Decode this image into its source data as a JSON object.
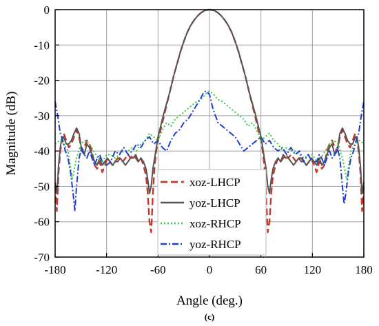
{
  "caption": "(c)",
  "chart_data": {
    "type": "line",
    "xlabel": "Angle (deg.)",
    "ylabel": "Magnitude (dB)",
    "xlim": [
      -180,
      180
    ],
    "ylim": [
      -70,
      0
    ],
    "xticks": [
      -180,
      -120,
      -60,
      0,
      60,
      120,
      180
    ],
    "yticks": [
      0,
      -10,
      -20,
      -30,
      -40,
      -50,
      -60,
      -70
    ],
    "grid": true,
    "legend_position": "center",
    "series": [
      {
        "name": "xoz-LHCP",
        "color": "#c0392b",
        "dash": "dashed",
        "x": [
          -180,
          -178,
          -176,
          -174,
          -172,
          -170,
          -167,
          -164,
          -161,
          -158,
          -155,
          -152,
          -149,
          -146,
          -143,
          -140,
          -137,
          -134,
          -131,
          -128,
          -125,
          -122,
          -119,
          -116,
          -113,
          -110,
          -107,
          -104,
          -101,
          -98,
          -95,
          -92,
          -89,
          -86,
          -83,
          -80,
          -77,
          -74,
          -72,
          -70,
          -68,
          -66,
          -64,
          -62,
          -60,
          -57,
          -54,
          -50,
          -46,
          -42,
          -38,
          -34,
          -30,
          -26,
          -22,
          -18,
          -14,
          -10,
          -6,
          -3,
          0,
          3,
          6,
          10,
          14,
          18,
          22,
          26,
          30,
          34,
          38,
          42,
          46,
          50,
          54,
          57,
          60,
          62,
          64,
          66,
          68,
          70,
          72,
          74,
          77,
          80,
          83,
          86,
          89,
          92,
          95,
          98,
          101,
          104,
          107,
          110,
          113,
          116,
          119,
          122,
          125,
          128,
          131,
          134,
          137,
          140,
          143,
          146,
          149,
          152,
          155,
          158,
          161,
          164,
          167,
          170,
          172,
          174,
          176,
          178,
          180
        ],
        "y": [
          -50,
          -57,
          -46,
          -40,
          -37,
          -35,
          -37,
          -39,
          -38,
          -36,
          -34,
          -36,
          -40,
          -39,
          -37,
          -38,
          -40,
          -44,
          -45,
          -43,
          -46,
          -44,
          -42,
          -43,
          -44,
          -43,
          -42,
          -42,
          -43,
          -42,
          -41,
          -42,
          -41,
          -42,
          -43,
          -42,
          -44,
          -47,
          -52,
          -60,
          -63,
          -52,
          -44,
          -40,
          -37,
          -34,
          -31,
          -27,
          -23,
          -19,
          -15.5,
          -12,
          -9,
          -6.5,
          -4.5,
          -3,
          -1.8,
          -0.9,
          -0.3,
          -0.1,
          0,
          -0.1,
          -0.3,
          -0.9,
          -1.8,
          -3,
          -4.5,
          -6.5,
          -9,
          -12,
          -15.5,
          -19,
          -23,
          -27,
          -31,
          -34,
          -37,
          -40,
          -44,
          -52,
          -63,
          -60,
          -52,
          -47,
          -44,
          -42,
          -43,
          -42,
          -41,
          -42,
          -41,
          -42,
          -43,
          -42,
          -42,
          -43,
          -44,
          -43,
          -42,
          -44,
          -46,
          -43,
          -45,
          -44,
          -40,
          -38,
          -37,
          -39,
          -40,
          -36,
          -34,
          -36,
          -38,
          -39,
          -37,
          -35,
          -37,
          -40,
          -46,
          -57,
          -50
        ]
      },
      {
        "name": "yoz-LHCP",
        "color": "#555555",
        "dash": "solid",
        "x": [
          -180,
          -178,
          -176,
          -174,
          -172,
          -170,
          -167,
          -164,
          -161,
          -158,
          -155,
          -152,
          -149,
          -146,
          -143,
          -140,
          -137,
          -134,
          -131,
          -128,
          -125,
          -122,
          -119,
          -116,
          -113,
          -110,
          -107,
          -104,
          -101,
          -98,
          -95,
          -92,
          -89,
          -86,
          -83,
          -80,
          -77,
          -74,
          -72,
          -70,
          -68,
          -66,
          -64,
          -62,
          -60,
          -57,
          -54,
          -50,
          -46,
          -42,
          -38,
          -34,
          -30,
          -26,
          -22,
          -18,
          -14,
          -10,
          -6,
          -3,
          0,
          3,
          6,
          10,
          14,
          18,
          22,
          26,
          30,
          34,
          38,
          42,
          46,
          50,
          54,
          57,
          60,
          62,
          64,
          66,
          68,
          70,
          72,
          74,
          77,
          80,
          83,
          86,
          89,
          92,
          95,
          98,
          101,
          104,
          107,
          110,
          113,
          116,
          119,
          122,
          125,
          128,
          131,
          134,
          137,
          140,
          143,
          146,
          149,
          152,
          155,
          158,
          161,
          164,
          167,
          170,
          172,
          174,
          176,
          178,
          180
        ],
        "y": [
          -49,
          -52,
          -44,
          -39,
          -36,
          -36,
          -38,
          -38,
          -37,
          -35,
          -33.5,
          -35,
          -40,
          -41,
          -38,
          -39,
          -41,
          -43,
          -44,
          -42,
          -44,
          -43,
          -42,
          -43,
          -44,
          -43,
          -43,
          -42,
          -43,
          -44,
          -43,
          -42,
          -42,
          -41,
          -43,
          -42,
          -43,
          -45,
          -48,
          -52,
          -50,
          -45,
          -42,
          -39,
          -36,
          -33,
          -30,
          -26.5,
          -23,
          -19,
          -15.5,
          -12,
          -9,
          -6.5,
          -4.5,
          -3,
          -1.8,
          -0.9,
          -0.3,
          -0.1,
          0,
          -0.1,
          -0.3,
          -0.9,
          -1.8,
          -3,
          -4.5,
          -6.5,
          -9,
          -12,
          -15.5,
          -19,
          -23,
          -26.5,
          -30,
          -33,
          -36,
          -39,
          -42,
          -45,
          -50,
          -52,
          -48,
          -45,
          -43,
          -42,
          -43,
          -41,
          -42,
          -42,
          -43,
          -44,
          -43,
          -42,
          -43,
          -43,
          -44,
          -43,
          -42,
          -43,
          -44,
          -42,
          -44,
          -43,
          -41,
          -39,
          -38,
          -41,
          -40,
          -35,
          -33.5,
          -35,
          -37,
          -38,
          -38,
          -36,
          -36,
          -39,
          -44,
          -52,
          -49
        ]
      },
      {
        "name": "xoz-RHCP",
        "color": "#2ecc40",
        "dash": "dotted",
        "x": [
          -180,
          -175,
          -170,
          -165,
          -160,
          -155,
          -150,
          -145,
          -140,
          -135,
          -130,
          -125,
          -120,
          -115,
          -110,
          -105,
          -100,
          -95,
          -90,
          -85,
          -80,
          -75,
          -70,
          -65,
          -60,
          -55,
          -50,
          -45,
          -40,
          -35,
          -30,
          -25,
          -20,
          -15,
          -10,
          -5,
          0,
          5,
          10,
          15,
          20,
          25,
          30,
          35,
          40,
          45,
          50,
          55,
          60,
          65,
          70,
          75,
          80,
          85,
          90,
          95,
          100,
          105,
          110,
          115,
          120,
          125,
          130,
          135,
          140,
          145,
          150,
          155,
          160,
          165,
          170,
          175,
          180
        ],
        "y": [
          -38,
          -37,
          -38,
          -40,
          -48,
          -42,
          -38,
          -37,
          -38,
          -40,
          -42,
          -43,
          -41,
          -41,
          -42,
          -41,
          -40,
          -40,
          -39,
          -40,
          -38,
          -37,
          -35,
          -36,
          -37,
          -34,
          -32,
          -33,
          -31,
          -30,
          -29,
          -28,
          -27,
          -26,
          -25.5,
          -24,
          -23,
          -24,
          -25.5,
          -26,
          -27,
          -28,
          -29,
          -30,
          -31,
          -33,
          -32,
          -34,
          -37,
          -36,
          -35,
          -37,
          -38,
          -40,
          -39,
          -40,
          -40,
          -41,
          -42,
          -41,
          -41,
          -43,
          -42,
          -40,
          -38,
          -37,
          -38,
          -42,
          -48,
          -40,
          -38,
          -37,
          -38
        ]
      },
      {
        "name": "yoz-RHCP",
        "color": "#1f3fd1",
        "dash": "dashdot",
        "x": [
          -180,
          -177,
          -174,
          -171,
          -168,
          -165,
          -162,
          -159,
          -157,
          -155,
          -152,
          -149,
          -146,
          -143,
          -140,
          -137,
          -134,
          -131,
          -128,
          -125,
          -120,
          -115,
          -110,
          -105,
          -100,
          -95,
          -90,
          -85,
          -80,
          -75,
          -70,
          -65,
          -60,
          -55,
          -50,
          -45,
          -40,
          -35,
          -30,
          -25,
          -20,
          -15,
          -10,
          -7,
          -4,
          -2,
          0,
          2,
          4,
          7,
          10,
          15,
          20,
          25,
          30,
          35,
          40,
          45,
          50,
          55,
          60,
          65,
          70,
          75,
          80,
          85,
          90,
          95,
          100,
          105,
          110,
          115,
          120,
          125,
          128,
          131,
          134,
          137,
          140,
          143,
          146,
          149,
          152,
          155,
          157,
          159,
          162,
          165,
          168,
          171,
          174,
          177,
          180
        ],
        "y": [
          -26,
          -30,
          -35,
          -37,
          -40,
          -42,
          -46,
          -52,
          -57,
          -50,
          -42,
          -39,
          -41,
          -42,
          -40,
          -42,
          -44,
          -42,
          -41,
          -43,
          -44,
          -43,
          -40,
          -41,
          -39,
          -41,
          -40,
          -38,
          -39,
          -37,
          -36,
          -38,
          -37,
          -39,
          -40,
          -37,
          -35,
          -34,
          -32,
          -31,
          -29,
          -27,
          -25,
          -23.5,
          -23,
          -23.5,
          -24,
          -26,
          -28,
          -30,
          -32,
          -33,
          -34,
          -35,
          -36,
          -38,
          -40,
          -39,
          -38,
          -37,
          -36,
          -38,
          -37,
          -39,
          -40,
          -39,
          -41,
          -39,
          -41,
          -40,
          -43,
          -41,
          -43,
          -43,
          -41,
          -42,
          -44,
          -42,
          -40,
          -42,
          -41,
          -39,
          -42,
          -50,
          -55,
          -52,
          -46,
          -42,
          -40,
          -37,
          -35,
          -30,
          -26
        ]
      }
    ]
  }
}
